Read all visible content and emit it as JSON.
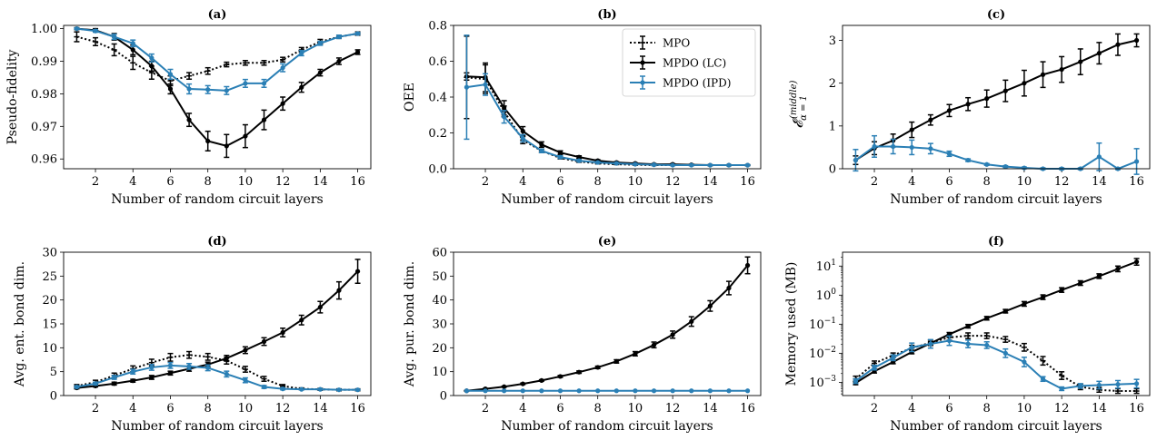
{
  "colors": {
    "mpo": "#000000",
    "lc": "#000000",
    "ipd": "#2a7fb5"
  },
  "legend": {
    "placement": "top-right",
    "panel": 1,
    "entries": [
      "MPO",
      "MPDO (LC)",
      "MPDO (IPD)"
    ]
  },
  "chart_data": [
    {
      "type": "line",
      "title": "(a)",
      "xlabel": "Number of random circuit layers",
      "ylabel": "Pseudo-fidelity",
      "xlim": [
        0.3,
        16.7
      ],
      "ylim": [
        0.957,
        1.001
      ],
      "scale": "linear",
      "xticks": [
        2,
        4,
        6,
        8,
        10,
        12,
        14,
        16
      ],
      "xtick_labels": [
        "2",
        "4",
        "6",
        "8",
        "10",
        "12",
        "14",
        "16"
      ],
      "yticks": [
        0.96,
        0.97,
        0.98,
        0.99,
        1.0
      ],
      "ytick_labels": [
        "0.96",
        "0.97",
        "0.98",
        "0.99",
        "1.00"
      ],
      "x": [
        1,
        2,
        3,
        4,
        5,
        6,
        7,
        8,
        9,
        10,
        11,
        12,
        13,
        14,
        15,
        16
      ],
      "series": [
        {
          "name": "MPO",
          "values": [
            0.9975,
            0.996,
            0.9935,
            0.9895,
            0.9865,
            0.984,
            0.9855,
            0.987,
            0.989,
            0.9895,
            0.9895,
            0.9905,
            0.9935,
            0.996,
            0.9975,
            0.9985
          ],
          "errors": [
            0.0015,
            0.0012,
            0.0018,
            0.002,
            0.002,
            0.0015,
            0.001,
            0.001,
            0.0007,
            0.0007,
            0.0007,
            0.0007,
            0.0007,
            0.0007,
            0.0005,
            0.0005
          ]
        },
        {
          "name": "MPDO (LC)",
          "values": [
            1.0,
            0.9995,
            0.9975,
            0.9935,
            0.9885,
            0.9815,
            0.972,
            0.9655,
            0.964,
            0.967,
            0.972,
            0.977,
            0.982,
            0.9865,
            0.99,
            0.9928
          ],
          "errors": [
            0.0003,
            0.0005,
            0.001,
            0.0015,
            0.0015,
            0.0015,
            0.002,
            0.003,
            0.0035,
            0.0035,
            0.003,
            0.002,
            0.0015,
            0.001,
            0.001,
            0.0007
          ]
        },
        {
          "name": "MPDO (IPD)",
          "values": [
            1.0,
            0.9993,
            0.9975,
            0.9955,
            0.991,
            0.986,
            0.9815,
            0.9813,
            0.981,
            0.9832,
            0.9832,
            0.988,
            0.9925,
            0.9955,
            0.9975,
            0.9985
          ],
          "errors": [
            0.0002,
            0.0004,
            0.0008,
            0.001,
            0.0012,
            0.0015,
            0.0015,
            0.0012,
            0.0012,
            0.0012,
            0.0012,
            0.0012,
            0.0008,
            0.0006,
            0.0005,
            0.0003
          ]
        }
      ]
    },
    {
      "type": "line",
      "title": "(b)",
      "xlabel": "Number of random circuit layers",
      "ylabel": "OEE",
      "xlim": [
        0.3,
        16.7
      ],
      "ylim": [
        0,
        0.8
      ],
      "scale": "linear",
      "xticks": [
        2,
        4,
        6,
        8,
        10,
        12,
        14,
        16
      ],
      "xtick_labels": [
        "2",
        "4",
        "6",
        "8",
        "10",
        "12",
        "14",
        "16"
      ],
      "yticks": [
        0,
        0.2,
        0.4,
        0.6,
        0.8
      ],
      "ytick_labels": [
        "0.0",
        "0.2",
        "0.4",
        "0.6",
        "0.8"
      ],
      "x": [
        1,
        2,
        3,
        4,
        5,
        6,
        7,
        8,
        9,
        10,
        11,
        12,
        13,
        14,
        15,
        16
      ],
      "series": [
        {
          "name": "MPO",
          "values": [
            0.51,
            0.5,
            0.32,
            0.16,
            0.1,
            0.06,
            0.04,
            0.03,
            0.025,
            0.022,
            0.02,
            0.02,
            0.02,
            0.02,
            0.02,
            0.02
          ],
          "errors": [
            0.23,
            0.08,
            0.03,
            0.02,
            0.01,
            0.005,
            0.004,
            0.003,
            0.002,
            0.002,
            0.002,
            0.002,
            0.002,
            0.002,
            0.002,
            0.002
          ]
        },
        {
          "name": "MPDO (LC)",
          "values": [
            0.515,
            0.51,
            0.34,
            0.21,
            0.135,
            0.09,
            0.065,
            0.045,
            0.035,
            0.03,
            0.025,
            0.025,
            0.022,
            0.02,
            0.02,
            0.02
          ],
          "errors": [
            0.02,
            0.08,
            0.04,
            0.025,
            0.015,
            0.01,
            0.007,
            0.005,
            0.004,
            0.003,
            0.003,
            0.003,
            0.003,
            0.002,
            0.002,
            0.002
          ]
        },
        {
          "name": "MPDO (IPD)",
          "values": [
            0.455,
            0.47,
            0.29,
            0.17,
            0.1,
            0.065,
            0.045,
            0.035,
            0.03,
            0.025,
            0.022,
            0.02,
            0.02,
            0.02,
            0.02,
            0.02
          ],
          "errors": [
            0.29,
            0.06,
            0.035,
            0.02,
            0.01,
            0.007,
            0.005,
            0.004,
            0.003,
            0.003,
            0.003,
            0.002,
            0.002,
            0.002,
            0.002,
            0.002
          ]
        }
      ]
    },
    {
      "type": "line",
      "title": "(c)",
      "xlabel": "Number of random circuit layers",
      "ylabel": "𝓔α = 1(middle)",
      "ylabel_main": "𝓔",
      "ylabel_sub": "α = 1",
      "ylabel_sup": "(middle)",
      "xlim": [
        0.3,
        16.7
      ],
      "ylim": [
        0,
        3.35
      ],
      "scale": "linear",
      "xticks": [
        2,
        4,
        6,
        8,
        10,
        12,
        14,
        16
      ],
      "xtick_labels": [
        "2",
        "4",
        "6",
        "8",
        "10",
        "12",
        "14",
        "16"
      ],
      "yticks": [
        0,
        1,
        2,
        3
      ],
      "ytick_labels": [
        "0",
        "1",
        "2",
        "3"
      ],
      "x": [
        1,
        2,
        3,
        4,
        5,
        6,
        7,
        8,
        9,
        10,
        11,
        12,
        13,
        14,
        15,
        16
      ],
      "series": [
        {
          "name": "MPDO (LC)",
          "values": [
            0.2,
            0.48,
            0.66,
            0.91,
            1.14,
            1.36,
            1.51,
            1.64,
            1.82,
            2.0,
            2.2,
            2.32,
            2.5,
            2.7,
            2.9,
            3.0
          ],
          "errors": [
            0.1,
            0.15,
            0.15,
            0.18,
            0.12,
            0.14,
            0.15,
            0.2,
            0.25,
            0.3,
            0.3,
            0.3,
            0.3,
            0.25,
            0.25,
            0.15
          ]
        },
        {
          "name": "MPDO (IPD)",
          "values": [
            0.2,
            0.52,
            0.52,
            0.5,
            0.47,
            0.35,
            0.2,
            0.1,
            0.05,
            0.02,
            0.0,
            0.0,
            0.0,
            0.28,
            0.0,
            0.17
          ],
          "errors": [
            0.25,
            0.25,
            0.17,
            0.17,
            0.12,
            0.06,
            0.03,
            0.02,
            0.02,
            0.02,
            0.02,
            0.02,
            0.02,
            0.32,
            0.02,
            0.3
          ]
        }
      ]
    },
    {
      "type": "line",
      "title": "(d)",
      "xlabel": "Number of random circuit layers",
      "ylabel": "Avg. ent. bond dim.",
      "xlim": [
        0.3,
        16.7
      ],
      "ylim": [
        0,
        30
      ],
      "scale": "linear",
      "xticks": [
        2,
        4,
        6,
        8,
        10,
        12,
        14,
        16
      ],
      "xtick_labels": [
        "2",
        "4",
        "6",
        "8",
        "10",
        "12",
        "14",
        "16"
      ],
      "yticks": [
        0,
        5,
        10,
        15,
        20,
        25,
        30
      ],
      "ytick_labels": [
        "0",
        "5",
        "10",
        "15",
        "20",
        "25",
        "30"
      ],
      "x": [
        1,
        2,
        3,
        4,
        5,
        6,
        7,
        8,
        9,
        10,
        11,
        12,
        13,
        14,
        15,
        16
      ],
      "series": [
        {
          "name": "MPO",
          "values": [
            2.0,
            2.8,
            4.2,
            5.6,
            6.9,
            8.0,
            8.5,
            8.1,
            7.3,
            5.5,
            3.5,
            2.0,
            1.4,
            1.3,
            1.2,
            1.2
          ],
          "errors": [
            0.3,
            0.4,
            0.5,
            0.6,
            0.7,
            0.8,
            0.7,
            0.7,
            0.7,
            0.6,
            0.5,
            0.3,
            0.2,
            0.2,
            0.2,
            0.2
          ]
        },
        {
          "name": "MPDO (LC)",
          "values": [
            1.6,
            2.0,
            2.5,
            3.1,
            3.8,
            4.7,
            5.6,
            6.5,
            7.8,
            9.5,
            11.3,
            13.2,
            15.8,
            18.5,
            22.0,
            26.0
          ],
          "errors": [
            0.2,
            0.2,
            0.3,
            0.3,
            0.4,
            0.4,
            0.5,
            0.5,
            0.6,
            0.7,
            0.8,
            0.9,
            1.0,
            1.2,
            1.8,
            2.5
          ]
        },
        {
          "name": "MPDO (IPD)",
          "values": [
            1.8,
            2.5,
            3.8,
            5.0,
            5.9,
            6.3,
            6.1,
            5.8,
            4.5,
            3.2,
            1.8,
            1.4,
            1.3,
            1.3,
            1.2,
            1.2
          ],
          "errors": [
            0.2,
            0.3,
            0.4,
            0.5,
            0.6,
            0.6,
            0.6,
            0.6,
            0.6,
            0.5,
            0.3,
            0.2,
            0.1,
            0.1,
            0.1,
            0.1
          ]
        }
      ]
    },
    {
      "type": "line",
      "title": "(e)",
      "xlabel": "Number of random circuit layers",
      "ylabel": "Avg. pur. bond dim.",
      "xlim": [
        0.3,
        16.7
      ],
      "ylim": [
        0,
        60
      ],
      "scale": "linear",
      "xticks": [
        2,
        4,
        6,
        8,
        10,
        12,
        14,
        16
      ],
      "xtick_labels": [
        "2",
        "4",
        "6",
        "8",
        "10",
        "12",
        "14",
        "16"
      ],
      "yticks": [
        0,
        10,
        20,
        30,
        40,
        50,
        60
      ],
      "ytick_labels": [
        "0",
        "10",
        "20",
        "30",
        "40",
        "50",
        "60"
      ],
      "x": [
        1,
        2,
        3,
        4,
        5,
        6,
        7,
        8,
        9,
        10,
        11,
        12,
        13,
        14,
        15,
        16
      ],
      "series": [
        {
          "name": "MPDO (LC)",
          "values": [
            2.0,
            2.8,
            3.7,
            4.9,
            6.3,
            8.0,
            9.8,
            11.8,
            14.3,
            17.5,
            21.2,
            25.5,
            31.0,
            37.5,
            45.0,
            54.5
          ],
          "errors": [
            0.1,
            0.2,
            0.2,
            0.3,
            0.3,
            0.4,
            0.5,
            0.5,
            0.7,
            0.9,
            1.2,
            1.5,
            2.0,
            2.2,
            2.8,
            3.5
          ]
        },
        {
          "name": "MPDO (IPD)",
          "values": [
            2.0,
            2.0,
            2.0,
            2.0,
            2.0,
            2.0,
            2.0,
            2.0,
            2.0,
            2.0,
            2.0,
            2.0,
            2.0,
            2.0,
            2.0,
            2.0
          ],
          "errors": [
            0,
            0,
            0,
            0,
            0,
            0,
            0,
            0,
            0,
            0,
            0,
            0,
            0,
            0,
            0,
            0
          ]
        }
      ]
    },
    {
      "type": "line",
      "title": "(f)",
      "xlabel": "Number of random circuit layers",
      "ylabel": "Memory used (MB)",
      "xlim": [
        0.3,
        16.7
      ],
      "ylim": [
        0.00035,
        30
      ],
      "scale": "log",
      "xticks": [
        2,
        4,
        6,
        8,
        10,
        12,
        14,
        16
      ],
      "xtick_labels": [
        "2",
        "4",
        "6",
        "8",
        "10",
        "12",
        "14",
        "16"
      ],
      "yticks": [
        0.001,
        0.01,
        0.1,
        1,
        10
      ],
      "ytick_base": [
        "10",
        "10",
        "10",
        "10",
        "10"
      ],
      "ytick_exp": [
        "−3",
        "−2",
        "−1",
        "0",
        "1"
      ],
      "x": [
        1,
        2,
        3,
        4,
        5,
        6,
        7,
        8,
        9,
        10,
        11,
        12,
        13,
        14,
        15,
        16
      ],
      "series": [
        {
          "name": "MPO",
          "values": [
            0.0013,
            0.0045,
            0.0085,
            0.015,
            0.023,
            0.035,
            0.04,
            0.04,
            0.03,
            0.016,
            0.0055,
            0.0017,
            0.0007,
            0.00055,
            0.0005,
            0.0005
          ],
          "errors_factor": [
            1.25,
            1.2,
            1.2,
            1.25,
            1.25,
            1.25,
            1.25,
            1.25,
            1.25,
            1.35,
            1.4,
            1.35,
            1.25,
            1.2,
            1.2,
            1.2
          ]
        },
        {
          "name": "MPDO (LC)",
          "values": [
            0.00095,
            0.0024,
            0.005,
            0.011,
            0.022,
            0.045,
            0.085,
            0.16,
            0.28,
            0.5,
            0.85,
            1.5,
            2.6,
            4.5,
            8.0,
            14.0
          ],
          "errors_factor": [
            1.15,
            1.15,
            1.15,
            1.15,
            1.15,
            1.15,
            1.15,
            1.15,
            1.15,
            1.2,
            1.2,
            1.2,
            1.2,
            1.2,
            1.25,
            1.3
          ]
        },
        {
          "name": "MPDO (IPD)",
          "values": [
            0.0011,
            0.0032,
            0.007,
            0.016,
            0.021,
            0.027,
            0.021,
            0.019,
            0.01,
            0.005,
            0.0013,
            0.0006,
            0.00075,
            0.0008,
            0.00085,
            0.0009
          ],
          "errors_factor": [
            1.2,
            1.2,
            1.25,
            1.4,
            1.4,
            1.45,
            1.35,
            1.3,
            1.4,
            1.45,
            1.2,
            1.15,
            1.2,
            1.35,
            1.35,
            1.4
          ]
        }
      ]
    }
  ]
}
